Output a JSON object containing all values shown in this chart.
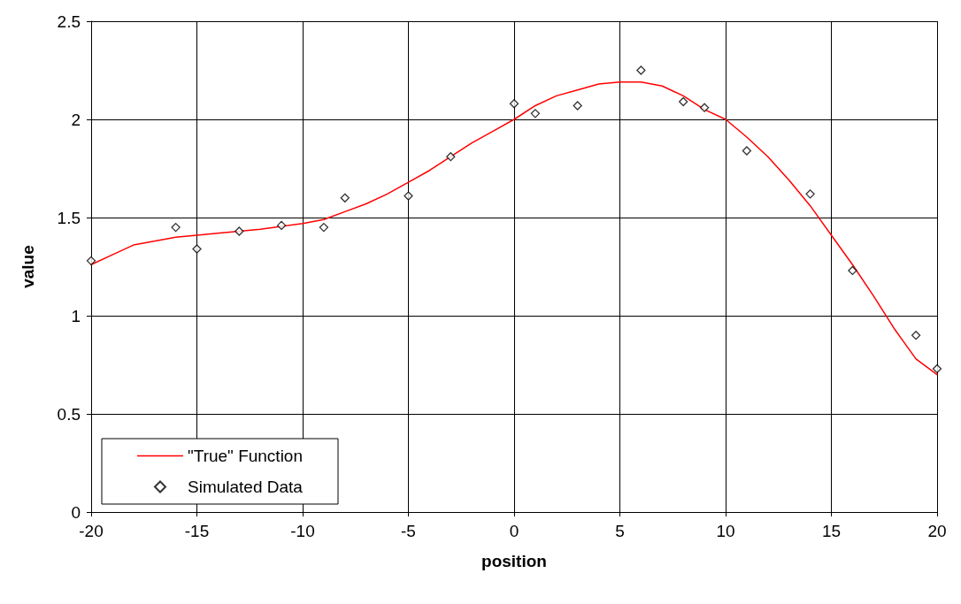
{
  "chart_data": {
    "type": "scatter",
    "xlabel": "position",
    "ylabel": "value",
    "xlim": [
      -20,
      20
    ],
    "xticks": [
      -20,
      -15,
      -10,
      -5,
      0,
      5,
      10,
      15,
      20
    ],
    "ylim": [
      0,
      2.5
    ],
    "yticks": [
      0,
      0.5,
      1,
      1.5,
      2,
      2.5
    ],
    "grid": true,
    "legend": "bottom left",
    "series": [
      {
        "name": "\"True\" Function",
        "type": "line",
        "marker": "none",
        "color": "#ff0000",
        "line_style": "solid",
        "x": [
          -20,
          -19,
          -18,
          -16,
          -15,
          -12,
          -10,
          -9,
          -8,
          -7,
          -6,
          -5,
          -4,
          -3,
          -2,
          -1,
          0,
          1,
          2,
          3,
          4,
          5,
          6,
          7,
          8,
          9,
          10,
          11,
          12,
          13,
          14,
          15,
          16,
          17,
          18,
          19,
          20
        ],
        "values": [
          1.26,
          1.31,
          1.36,
          1.4,
          1.41,
          1.44,
          1.47,
          1.49,
          1.53,
          1.57,
          1.62,
          1.68,
          1.74,
          1.81,
          1.88,
          1.94,
          2.0,
          2.07,
          2.12,
          2.15,
          2.18,
          2.19,
          2.19,
          2.17,
          2.12,
          2.05,
          2.0,
          1.91,
          1.81,
          1.69,
          1.56,
          1.41,
          1.26,
          1.1,
          0.93,
          0.78,
          0.7
        ]
      },
      {
        "name": "Simulated Data",
        "marker": "diamond",
        "color": "#000000",
        "x": [
          -20,
          -16,
          -15,
          -13,
          -11,
          -9,
          -8,
          -5,
          -3,
          0,
          1,
          3,
          6,
          8,
          9,
          11,
          14,
          16,
          19,
          20
        ],
        "values": [
          1.28,
          1.45,
          1.34,
          1.43,
          1.46,
          1.45,
          1.6,
          1.61,
          1.81,
          2.08,
          2.03,
          2.07,
          2.25,
          2.09,
          2.06,
          1.84,
          1.62,
          1.23,
          0.9,
          0.73
        ]
      }
    ]
  }
}
